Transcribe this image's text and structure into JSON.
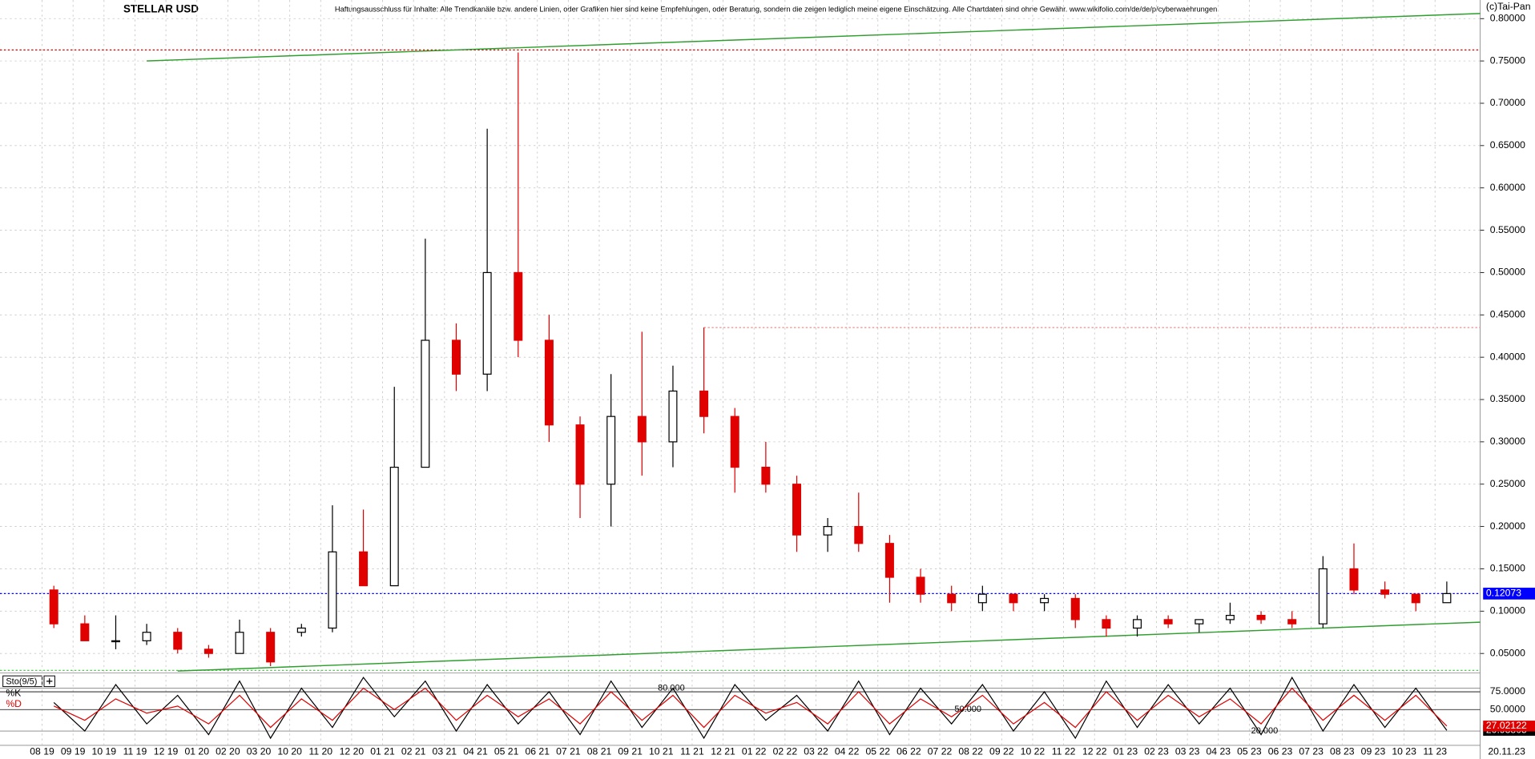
{
  "chart_data": [
    {
      "type": "candlestick",
      "title": "STELLAR USD",
      "disclaimer": "Haftungsausschluss für Inhalte: Alle Trendkanäle bzw. andere Linien, oder Grafiken hier sind keine Empfehlungen, oder Beratung, sondern die zeigen lediglich meine eigene Einschätzung. Alle Chartdaten sind ohne Gewähr. www.wikifolio.com/de/de/p/cyberwaehrungen",
      "copyright": "(c)Tai-Pan",
      "last_date": "20.11.23",
      "categories": [
        "08 19",
        "09 19",
        "10 19",
        "11 19",
        "12 19",
        "01 20",
        "02 20",
        "03 20",
        "10 20",
        "11 20",
        "12 20",
        "01 21",
        "02 21",
        "03 21",
        "04 21",
        "05 21",
        "06 21",
        "07 21",
        "08 21",
        "09 21",
        "10 21",
        "11 21",
        "12 21",
        "01 22",
        "02 22",
        "03 22",
        "04 22",
        "05 22",
        "06 22",
        "07 22",
        "08 22",
        "09 22",
        "10 22",
        "11 22",
        "12 22",
        "01 23",
        "02 23",
        "03 23",
        "04 23",
        "05 23",
        "06 23",
        "07 23",
        "08 23",
        "09 23",
        "10 23",
        "11 23"
      ],
      "open": [
        0.125,
        0.085,
        0.065,
        0.065,
        0.075,
        0.055,
        0.05,
        0.075,
        0.075,
        0.08,
        0.17,
        0.13,
        0.27,
        0.42,
        0.38,
        0.5,
        0.42,
        0.32,
        0.25,
        0.33,
        0.3,
        0.36,
        0.33,
        0.27,
        0.25,
        0.19,
        0.2,
        0.18,
        0.14,
        0.12,
        0.11,
        0.12,
        0.11,
        0.115,
        0.09,
        0.08,
        0.09,
        0.085,
        0.09,
        0.095,
        0.09,
        0.085,
        0.15,
        0.125,
        0.12,
        0.11
      ],
      "high": [
        0.13,
        0.095,
        0.095,
        0.085,
        0.08,
        0.06,
        0.09,
        0.08,
        0.085,
        0.225,
        0.22,
        0.365,
        0.54,
        0.44,
        0.67,
        0.76,
        0.45,
        0.33,
        0.38,
        0.43,
        0.39,
        0.435,
        0.34,
        0.3,
        0.26,
        0.21,
        0.24,
        0.19,
        0.15,
        0.13,
        0.13,
        0.12,
        0.12,
        0.12,
        0.095,
        0.095,
        0.095,
        0.09,
        0.11,
        0.1,
        0.1,
        0.165,
        0.18,
        0.135,
        0.12,
        0.135
      ],
      "low": [
        0.08,
        0.065,
        0.055,
        0.06,
        0.05,
        0.045,
        0.05,
        0.035,
        0.07,
        0.075,
        0.13,
        0.13,
        0.27,
        0.36,
        0.36,
        0.4,
        0.3,
        0.21,
        0.2,
        0.26,
        0.27,
        0.31,
        0.24,
        0.24,
        0.17,
        0.17,
        0.17,
        0.11,
        0.11,
        0.1,
        0.1,
        0.1,
        0.1,
        0.08,
        0.07,
        0.07,
        0.08,
        0.075,
        0.085,
        0.085,
        0.08,
        0.08,
        0.12,
        0.115,
        0.1,
        0.11
      ],
      "close": [
        0.085,
        0.065,
        0.065,
        0.075,
        0.055,
        0.05,
        0.075,
        0.04,
        0.08,
        0.17,
        0.13,
        0.27,
        0.42,
        0.38,
        0.5,
        0.42,
        0.32,
        0.25,
        0.33,
        0.3,
        0.36,
        0.33,
        0.27,
        0.25,
        0.19,
        0.2,
        0.18,
        0.14,
        0.12,
        0.11,
        0.12,
        0.11,
        0.115,
        0.09,
        0.08,
        0.09,
        0.085,
        0.09,
        0.095,
        0.09,
        0.085,
        0.15,
        0.125,
        0.12,
        0.11,
        0.12073
      ],
      "up_color": "#000000",
      "down_color": "#e00000",
      "ylim": [
        0.027,
        0.822
      ],
      "yticks": [
        {
          "value": 0.05,
          "label": "0.05000"
        },
        {
          "value": 0.1,
          "label": "0.10000"
        },
        {
          "value": 0.15,
          "label": "0.15000"
        },
        {
          "value": 0.2,
          "label": "0.20000"
        },
        {
          "value": 0.25,
          "label": "0.25000"
        },
        {
          "value": 0.3,
          "label": "0.30000"
        },
        {
          "value": 0.35,
          "label": "0.35000"
        },
        {
          "value": 0.4,
          "label": "0.40000"
        },
        {
          "value": 0.45,
          "label": "0.45000"
        },
        {
          "value": 0.5,
          "label": "0.50000"
        },
        {
          "value": 0.55,
          "label": "0.55000"
        },
        {
          "value": 0.6,
          "label": "0.60000"
        },
        {
          "value": 0.65,
          "label": "0.65000"
        },
        {
          "value": 0.7,
          "label": "0.70000"
        },
        {
          "value": 0.75,
          "label": "0.75000"
        },
        {
          "value": 0.8,
          "label": "0.80000"
        }
      ],
      "grid": true,
      "reference_lines": [
        {
          "value": 0.763,
          "color": "#e00000"
        },
        {
          "value": 0.435,
          "color": "#e89090",
          "from": "11 21"
        },
        {
          "value": 0.12073,
          "color": "#0000ff",
          "labeled": true
        },
        {
          "value": 0.03,
          "color": "#40c040"
        }
      ],
      "trendlines": [
        {
          "x": [
            "11 19",
            "11 23"
          ],
          "y": [
            0.75,
            0.8046
          ],
          "color": "#2e9e2e"
        },
        {
          "x": [
            "12 19",
            "11 23"
          ],
          "y": [
            0.0292,
            0.0855
          ],
          "color": "#2e9e2e"
        }
      ]
    },
    {
      "type": "line",
      "title": "Sto(9/5)",
      "ylim": [
        0,
        100
      ],
      "yticks": [
        {
          "value": 75,
          "label": "75.0000"
        },
        {
          "value": 50,
          "label": "50.0000"
        }
      ],
      "levels": [
        {
          "value": 80,
          "label": "80.000"
        },
        {
          "value": 50,
          "label": "50.000"
        },
        {
          "value": 20,
          "label": "20.000"
        }
      ],
      "series": [
        {
          "name": "%K",
          "color": "#000000",
          "values": [
            60,
            20,
            85,
            30,
            70,
            15,
            90,
            10,
            80,
            25,
            95,
            40,
            90,
            20,
            85,
            30,
            75,
            15,
            90,
            25,
            80,
            10,
            85,
            35,
            70,
            20,
            90,
            15,
            80,
            30,
            85,
            20,
            75,
            10,
            90,
            25,
            85,
            30,
            80,
            15,
            95,
            20,
            85,
            25,
            80,
            20.93805
          ]
        },
        {
          "name": "%D",
          "color": "#e00000",
          "values": [
            55,
            35,
            65,
            45,
            55,
            30,
            70,
            25,
            65,
            35,
            80,
            50,
            80,
            35,
            70,
            40,
            65,
            30,
            75,
            35,
            70,
            25,
            70,
            45,
            60,
            30,
            75,
            30,
            65,
            40,
            70,
            30,
            60,
            25,
            75,
            35,
            70,
            40,
            65,
            30,
            80,
            35,
            70,
            35,
            70,
            27.02122
          ]
        }
      ]
    }
  ]
}
